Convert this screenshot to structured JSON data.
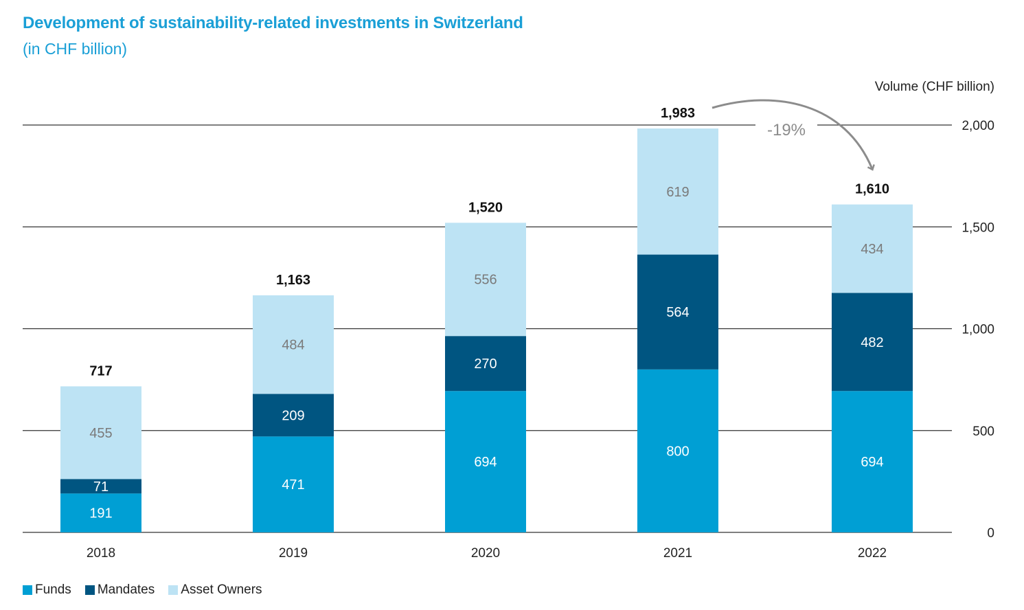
{
  "title": "Development of sustainability-related investments in Switzerland",
  "subtitle": "(in CHF billion)",
  "colors": {
    "funds": "#009fd4",
    "mandates": "#005581",
    "asset_owners": "#bde3f4",
    "grid": "#333333",
    "annotation": "#8c8c8c"
  },
  "chart_data": {
    "type": "bar",
    "stacked": true,
    "title": "Development of sustainability-related investments in Switzerland",
    "subtitle": "(in CHF billion)",
    "xlabel": "",
    "ylabel": "Volume (CHF billion)",
    "ylim": [
      0,
      2000
    ],
    "yticks": [
      0,
      500,
      1000,
      1500,
      2000
    ],
    "ytick_labels": [
      "0",
      "500",
      "1,000",
      "1,500",
      "2,000"
    ],
    "y_axis_side": "right",
    "grid": true,
    "legend_position": "bottom-left",
    "categories": [
      "2018",
      "2019",
      "2020",
      "2021",
      "2022"
    ],
    "series": [
      {
        "name": "Funds",
        "values": [
          191,
          471,
          694,
          800,
          694
        ]
      },
      {
        "name": "Mandates",
        "values": [
          71,
          209,
          270,
          564,
          482
        ]
      },
      {
        "name": "Asset Owners",
        "values": [
          455,
          484,
          556,
          619,
          434
        ]
      }
    ],
    "totals": [
      717,
      1163,
      1520,
      1983,
      1610
    ],
    "total_labels": [
      "717",
      "1,163",
      "1,520",
      "1,983",
      "1,610"
    ],
    "annotation": {
      "text": "-19%",
      "from": "2021",
      "to": "2022"
    }
  },
  "legend": [
    "Funds",
    "Mandates",
    "Asset Owners"
  ]
}
